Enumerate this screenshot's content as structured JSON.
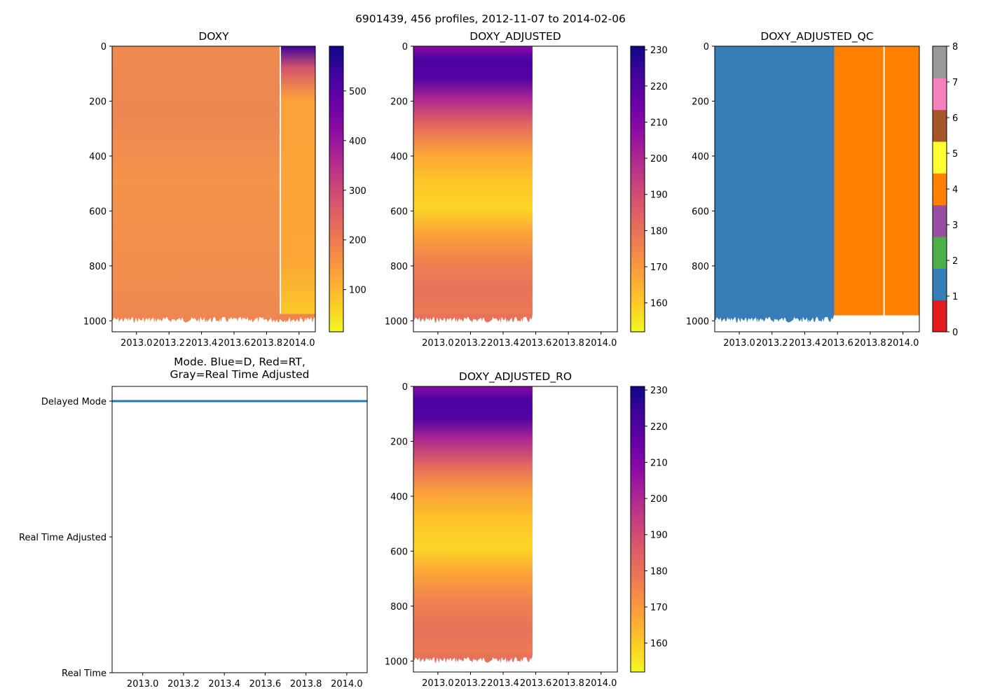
{
  "figure": {
    "suptitle": "6901439, 456 profiles, 2012-11-07 to 2014-02-06"
  },
  "chart_data": [
    {
      "type": "heatmap",
      "title": "DOXY",
      "x_range": [
        2012.85,
        2014.1
      ],
      "y_range": [
        1040,
        0
      ],
      "x_ticks": [
        2013.0,
        2013.2,
        2013.4,
        2013.6,
        2013.8,
        2014.0
      ],
      "y_ticks": [
        0,
        200,
        400,
        600,
        800,
        1000
      ],
      "data_end_x": 2014.1,
      "colormap": "plasma_r",
      "colorbar": {
        "range": [
          15,
          590
        ],
        "ticks": [
          100,
          200,
          300,
          400,
          500
        ]
      }
    },
    {
      "type": "heatmap",
      "title": "DOXY_ADJUSTED",
      "x_range": [
        2012.85,
        2014.1
      ],
      "y_range": [
        1040,
        0
      ],
      "x_ticks": [
        2013.0,
        2013.2,
        2013.4,
        2013.6,
        2013.8,
        2014.0
      ],
      "y_ticks": [
        0,
        200,
        400,
        600,
        800,
        1000
      ],
      "data_end_x": 2013.58,
      "colormap": "plasma_r",
      "colorbar": {
        "range": [
          152,
          231
        ],
        "ticks": [
          160,
          170,
          180,
          190,
          200,
          210,
          220,
          230
        ]
      }
    },
    {
      "type": "heatmap",
      "title": "DOXY_ADJUSTED_QC",
      "x_range": [
        2012.85,
        2014.1
      ],
      "y_range": [
        1040,
        0
      ],
      "x_ticks": [
        2013.0,
        2013.2,
        2013.4,
        2013.6,
        2013.8,
        2014.0
      ],
      "y_ticks": [
        0,
        200,
        400,
        600,
        800,
        1000
      ],
      "segments": [
        {
          "x_start": 2012.85,
          "x_end": 2013.58,
          "qc": 1
        },
        {
          "x_start": 2013.58,
          "x_end": 2014.1,
          "qc": 4
        }
      ],
      "colorbar": {
        "range": [
          0,
          8
        ],
        "ticks": [
          0,
          1,
          2,
          3,
          4,
          5,
          6,
          7,
          8
        ],
        "colors": [
          "#e41a1c",
          "#377eb8",
          "#4daf4a",
          "#984ea3",
          "#ff7f00",
          "#ffff33",
          "#a65628",
          "#f781bf",
          "#999999"
        ]
      }
    },
    {
      "type": "line",
      "title": "Mode. Blue=D, Red=RT,\nGray=Real Time Adjusted",
      "x_range": [
        2012.85,
        2014.1
      ],
      "x_ticks": [
        2013.0,
        2013.2,
        2013.4,
        2013.6,
        2013.8,
        2014.0
      ],
      "y_categories": [
        "Real Time",
        "Real Time Adjusted",
        "Delayed Mode"
      ],
      "series": [
        {
          "name": "Delayed Mode",
          "color": "#1f77b4",
          "x": [
            2012.85,
            2014.1
          ],
          "y": [
            2,
            2
          ]
        }
      ]
    },
    {
      "type": "heatmap",
      "title": "DOXY_ADJUSTED_RO",
      "x_range": [
        2012.85,
        2014.1
      ],
      "y_range": [
        1040,
        0
      ],
      "x_ticks": [
        2013.0,
        2013.2,
        2013.4,
        2013.6,
        2013.8,
        2014.0
      ],
      "y_ticks": [
        0,
        200,
        400,
        600,
        800,
        1000
      ],
      "data_end_x": 2013.58,
      "colormap": "plasma_r",
      "colorbar": {
        "range": [
          152,
          231
        ],
        "ticks": [
          160,
          170,
          180,
          190,
          200,
          210,
          220,
          230
        ]
      }
    }
  ]
}
